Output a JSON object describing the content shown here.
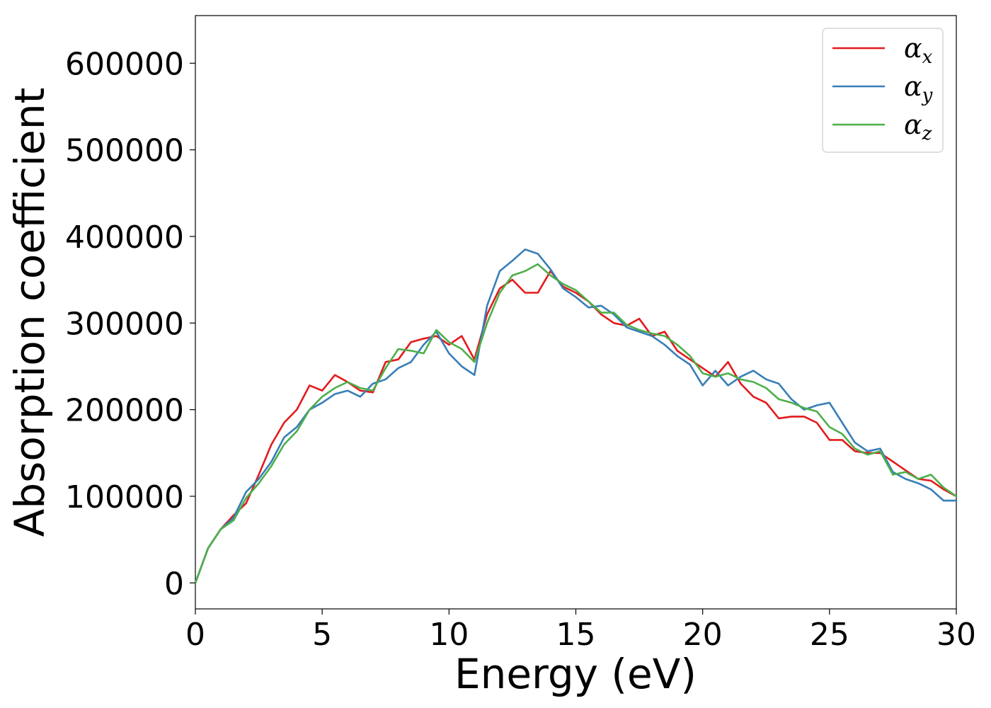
{
  "chart_data": {
    "type": "line",
    "title": "",
    "xlabel": "Energy (eV)",
    "ylabel": "Absorption coefficient",
    "xlim": [
      0,
      30
    ],
    "ylim": [
      -30000,
      655000
    ],
    "xticks": [
      0,
      5,
      10,
      15,
      20,
      25,
      30
    ],
    "xtick_labels": [
      "0",
      "5",
      "10",
      "15",
      "20",
      "25",
      "30"
    ],
    "yticks": [
      0,
      100000,
      200000,
      300000,
      400000,
      500000,
      600000
    ],
    "ytick_labels": [
      "0",
      "100000",
      "200000",
      "300000",
      "400000",
      "500000",
      "600000"
    ],
    "grid": false,
    "legend_position": "top-right",
    "x": [
      0,
      0.5,
      1,
      1.5,
      2,
      2.5,
      3,
      3.5,
      4,
      4.5,
      5,
      5.5,
      6,
      6.5,
      7,
      7.5,
      8,
      8.5,
      9,
      9.5,
      10,
      10.5,
      11,
      11.5,
      12,
      12.5,
      13,
      13.5,
      14,
      14.5,
      15,
      15.5,
      16,
      16.5,
      17,
      17.5,
      18,
      18.5,
      19,
      19.5,
      20,
      20.5,
      21,
      21.5,
      22,
      22.5,
      23,
      23.5,
      24,
      24.5,
      25,
      25.5,
      26,
      26.5,
      27,
      27.5,
      28,
      28.5,
      29,
      29.5,
      30
    ],
    "series": [
      {
        "name": "αx",
        "legend_main": "α",
        "legend_sub": "x",
        "color": "#e41a1c",
        "values": [
          0,
          40000,
          62000,
          78000,
          92000,
          125000,
          160000,
          185000,
          200000,
          228000,
          222000,
          240000,
          232000,
          222000,
          220000,
          255000,
          258000,
          278000,
          282000,
          285000,
          275000,
          285000,
          258000,
          310000,
          340000,
          350000,
          335000,
          335000,
          360000,
          342000,
          335000,
          325000,
          310000,
          300000,
          297000,
          305000,
          285000,
          290000,
          268000,
          258000,
          248000,
          238000,
          255000,
          230000,
          215000,
          208000,
          190000,
          192000,
          192000,
          185000,
          165000,
          165000,
          152000,
          150000,
          150000,
          140000,
          130000,
          120000,
          118000,
          108000,
          100000
        ]
      },
      {
        "name": "αy",
        "legend_main": "α",
        "legend_sub": "y",
        "color": "#377eb8",
        "values": [
          0,
          40000,
          62000,
          75000,
          105000,
          120000,
          140000,
          168000,
          180000,
          200000,
          208000,
          218000,
          222000,
          215000,
          230000,
          235000,
          248000,
          255000,
          275000,
          290000,
          265000,
          250000,
          240000,
          320000,
          360000,
          372000,
          385000,
          380000,
          362000,
          340000,
          330000,
          318000,
          320000,
          310000,
          295000,
          290000,
          285000,
          275000,
          262000,
          252000,
          228000,
          245000,
          228000,
          238000,
          245000,
          235000,
          230000,
          212000,
          200000,
          205000,
          208000,
          185000,
          162000,
          152000,
          155000,
          128000,
          120000,
          115000,
          108000,
          95000,
          95000
        ]
      },
      {
        "name": "αz",
        "legend_main": "α",
        "legend_sub": "z",
        "color": "#4daf4a",
        "values": [
          0,
          40000,
          62000,
          72000,
          98000,
          115000,
          135000,
          160000,
          175000,
          200000,
          215000,
          225000,
          232000,
          225000,
          222000,
          248000,
          270000,
          268000,
          265000,
          292000,
          278000,
          270000,
          255000,
          300000,
          335000,
          355000,
          360000,
          368000,
          355000,
          345000,
          338000,
          325000,
          312000,
          312000,
          298000,
          292000,
          288000,
          285000,
          275000,
          262000,
          242000,
          238000,
          242000,
          235000,
          232000,
          225000,
          212000,
          208000,
          202000,
          198000,
          180000,
          172000,
          155000,
          148000,
          152000,
          125000,
          128000,
          120000,
          125000,
          110000,
          100000
        ]
      }
    ]
  }
}
